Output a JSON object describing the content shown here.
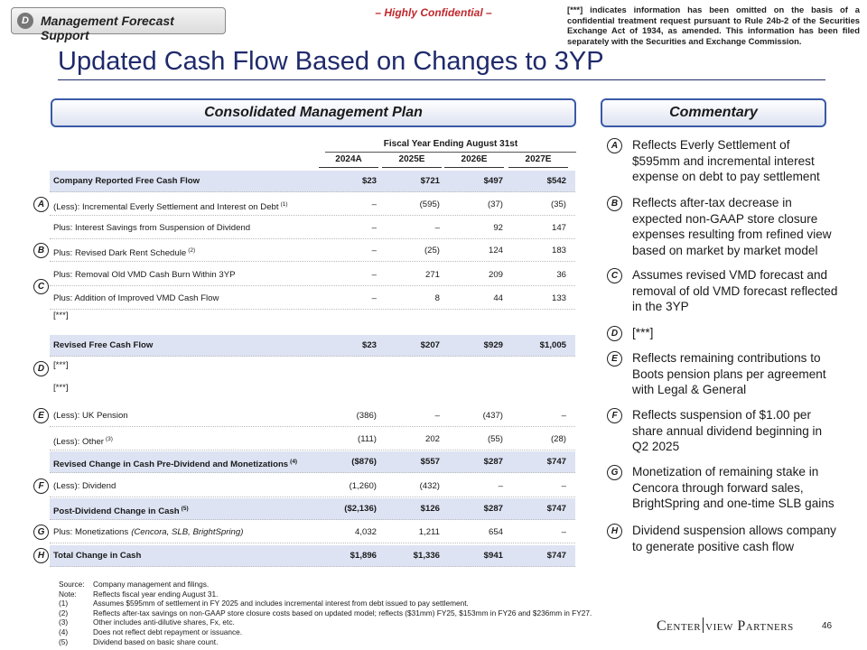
{
  "tag": {
    "letter": "D",
    "text": "Management Forecast Support"
  },
  "confidential": "– Highly Confidential –",
  "disclaimer": "[***] indicates information has been omitted on the basis of a confidential treatment request pursuant to Rule 24b-2 of the Securities Exchange Act of 1934, as amended. This information has been filed separately with the Securities and Exchange Commission.",
  "title": "Updated Cash Flow Based on Changes to 3YP",
  "plan_header": "Consolidated Management Plan",
  "commentary_header": "Commentary",
  "table": {
    "group_header": "Fiscal Year Ending August 31st",
    "columns": [
      "2024A",
      "2025E",
      "2026E",
      "2027E"
    ],
    "rows": [
      {
        "label": "Company Reported Free Cash Flow",
        "values": [
          "$23",
          "$721",
          "$497",
          "$542"
        ],
        "shaded": true
      },
      {
        "marker": "A",
        "label": "(Less): Incremental Everly Settlement and Interest on Debt",
        "sup": "(1)",
        "values": [
          "–",
          "(595)",
          "(37)",
          "(35)"
        ]
      },
      {
        "label": "Plus: Interest Savings from Suspension of Dividend",
        "values": [
          "–",
          "–",
          "92",
          "147"
        ]
      },
      {
        "marker": "B",
        "label": "Plus: Revised Dark Rent Schedule",
        "sup": "(2)",
        "values": [
          "–",
          "(25)",
          "124",
          "183"
        ]
      },
      {
        "marker": "C",
        "label": "Plus: Removal Old VMD Cash Burn Within 3YP",
        "values": [
          "–",
          "271",
          "209",
          "36"
        ]
      },
      {
        "label": "Plus: Addition of Improved VMD Cash Flow",
        "values": [
          "–",
          "8",
          "44",
          "133"
        ]
      },
      {
        "label": "[***]"
      },
      {
        "label": "Revised Free Cash Flow",
        "values": [
          "$23",
          "$207",
          "$929",
          "$1,005"
        ],
        "shaded": true
      },
      {
        "marker": "D",
        "label": "[***]"
      },
      {
        "label": "[***]"
      },
      {
        "marker": "E",
        "label": "(Less): UK Pension",
        "values": [
          "(386)",
          "–",
          "(437)",
          "–"
        ]
      },
      {
        "label": "(Less): Other",
        "sup": "(3)",
        "values": [
          "(111)",
          "202",
          "(55)",
          "(28)"
        ]
      },
      {
        "label": "Revised Change in Cash Pre-Dividend and Monetizations",
        "sup": "(4)",
        "values": [
          "($876)",
          "$557",
          "$287",
          "$747"
        ],
        "shaded": true
      },
      {
        "marker": "F",
        "label": "(Less): Dividend",
        "values": [
          "(1,260)",
          "(432)",
          "–",
          "–"
        ]
      },
      {
        "label": "Post-Dividend Change in Cash",
        "sup": "(5)",
        "values": [
          "($2,136)",
          "$126",
          "$287",
          "$747"
        ],
        "shaded": true
      },
      {
        "marker": "G",
        "label": "Plus: Monetizations",
        "note": "(Cencora, SLB, BrightSpring)",
        "values": [
          "4,032",
          "1,211",
          "654",
          "–"
        ]
      },
      {
        "marker": "H",
        "label": "Total Change in Cash",
        "values": [
          "$1,896",
          "$1,336",
          "$941",
          "$747"
        ],
        "shaded": true
      }
    ]
  },
  "commentary": [
    {
      "letter": "A",
      "text": "Reflects Everly Settlement of $595mm and incremental interest expense on debt to pay settlement"
    },
    {
      "letter": "B",
      "text": "Reflects after-tax decrease in expected non-GAAP store closure expenses resulting from refined view based on market by market model"
    },
    {
      "letter": "C",
      "text": "Assumes revised VMD forecast and removal of old VMD forecast reflected in the 3YP"
    },
    {
      "letter": "D",
      "text": "[***]"
    },
    {
      "letter": "E",
      "text": "Reflects remaining contributions to Boots pension plans per agreement with Legal & General"
    },
    {
      "letter": "F",
      "text": "Reflects suspension of $1.00 per share annual dividend beginning in Q2 2025"
    },
    {
      "letter": "G",
      "text": "Monetization of remaining stake in Cencora through forward sales, BrightSpring and one-time SLB gains"
    },
    {
      "letter": "H",
      "text": "Dividend suspension allows company to generate positive cash flow"
    }
  ],
  "footnotes": [
    {
      "label": "Source:",
      "text": "Company management and filings."
    },
    {
      "label": "Note:",
      "text": "Reflects fiscal year ending August 31."
    },
    {
      "label": "(1)",
      "text": "Assumes $595mm of settlement in FY 2025 and includes incremental interest from debt issued to pay settlement."
    },
    {
      "label": "(2)",
      "text": "Reflects after-tax savings on non-GAAP store closure costs based on updated model; reflects ($31mm) FY25, $153mm in FY26 and $236mm in FY27."
    },
    {
      "label": "(3)",
      "text": "Other includes anti-dilutive shares, Fx, etc."
    },
    {
      "label": "(4)",
      "text": "Does not reflect debt repayment or issuance."
    },
    {
      "label": "(5)",
      "text": "Dividend based on basic share count."
    }
  ],
  "logo": [
    "Center",
    "view Partners"
  ],
  "page_number": "46"
}
